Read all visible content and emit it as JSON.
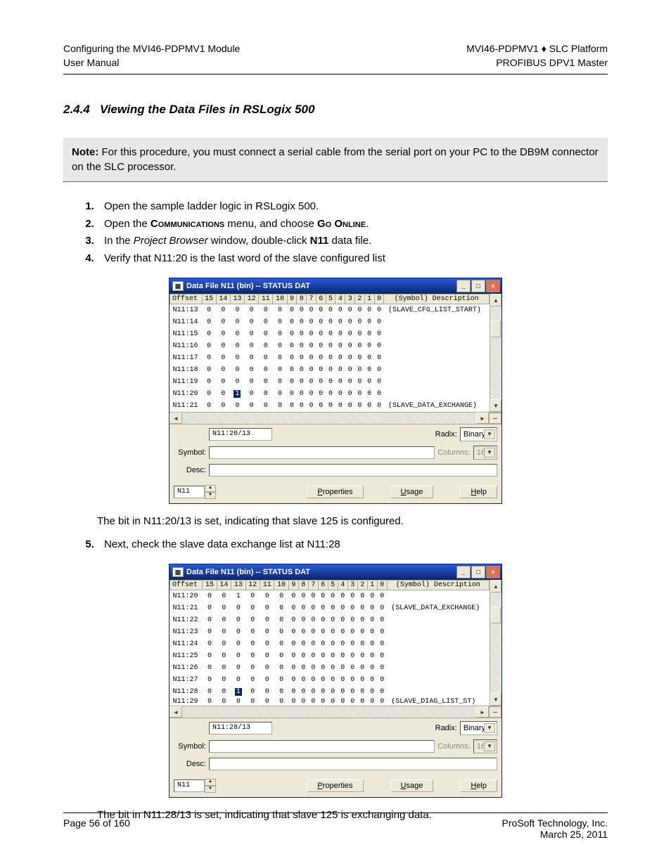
{
  "header": {
    "left_line1": "Configuring the MVI46-PDPMV1 Module",
    "left_line2": "User Manual",
    "right_line1": "MVI46-PDPMV1 ♦ SLC Platform",
    "right_line2": "PROFIBUS DPV1 Master"
  },
  "section": {
    "number": "2.4.4",
    "title": "Viewing the Data Files in RSLogix 500"
  },
  "note": {
    "label": "Note:",
    "text": "For this procedure, you must connect a serial cable from the serial port on your PC to the DB9M connector on the SLC processor."
  },
  "steps_a": {
    "items": [
      "Open the sample ladder logic in RSLogix 500.",
      {
        "pre": "Open the ",
        "smallcaps1": "Communications",
        "mid": " menu, and choose ",
        "smallcaps2": "Go Online",
        "post": "."
      },
      {
        "pre": "In the ",
        "italic": "Project Browser",
        "mid": " window, double-click ",
        "bold": "N11",
        "post": " data file."
      },
      "Verify that N11:20 is the last word of the slave configured list"
    ]
  },
  "body_text_1": "The bit in N11:20/13 is set, indicating that slave 125 is configured.",
  "steps_b": {
    "start": 5,
    "item": "Next, check the slave data exchange list at N11:28"
  },
  "body_text_2": "The bit in N11:28/13 is set, indicating that slave 125 is exchanging data.",
  "window_common": {
    "title": "Data File N11 (bin)  --  STATUS DAT",
    "col_headers": [
      "Offset",
      "15",
      "14",
      "13",
      "12",
      "11",
      "10",
      "9",
      "8",
      "7",
      "6",
      "5",
      "4",
      "3",
      "2",
      "1",
      "0",
      "(Symbol) Description"
    ],
    "titlebar_bg": "#0a246a",
    "panel_bg": "#ece9d8",
    "highlight_bg": "#0a246a",
    "highlight_fg": "#ffffff",
    "symbol_label": "Symbol:",
    "desc_label": "Desc:",
    "radix_label": "Radix:",
    "radix_value": "Binary",
    "columns_label": "Columns:",
    "columns_value": "16",
    "file_input": "N11",
    "btn_properties": "Properties",
    "btn_usage": "Usage",
    "btn_help": "Help"
  },
  "window1": {
    "address_field": "N11:20/13",
    "rows": [
      {
        "offset": "N11:13",
        "bits": [
          0,
          0,
          0,
          0,
          0,
          0,
          0,
          0,
          0,
          0,
          0,
          0,
          0,
          0,
          0,
          0
        ],
        "desc": "(SLAVE_CFG_LIST_START)"
      },
      {
        "offset": "N11:14",
        "bits": [
          0,
          0,
          0,
          0,
          0,
          0,
          0,
          0,
          0,
          0,
          0,
          0,
          0,
          0,
          0,
          0
        ],
        "desc": ""
      },
      {
        "offset": "N11:15",
        "bits": [
          0,
          0,
          0,
          0,
          0,
          0,
          0,
          0,
          0,
          0,
          0,
          0,
          0,
          0,
          0,
          0
        ],
        "desc": ""
      },
      {
        "offset": "N11:16",
        "bits": [
          0,
          0,
          0,
          0,
          0,
          0,
          0,
          0,
          0,
          0,
          0,
          0,
          0,
          0,
          0,
          0
        ],
        "desc": ""
      },
      {
        "offset": "N11:17",
        "bits": [
          0,
          0,
          0,
          0,
          0,
          0,
          0,
          0,
          0,
          0,
          0,
          0,
          0,
          0,
          0,
          0
        ],
        "desc": ""
      },
      {
        "offset": "N11:18",
        "bits": [
          0,
          0,
          0,
          0,
          0,
          0,
          0,
          0,
          0,
          0,
          0,
          0,
          0,
          0,
          0,
          0
        ],
        "desc": ""
      },
      {
        "offset": "N11:19",
        "bits": [
          0,
          0,
          0,
          0,
          0,
          0,
          0,
          0,
          0,
          0,
          0,
          0,
          0,
          0,
          0,
          0
        ],
        "desc": ""
      },
      {
        "offset": "N11:20",
        "bits": [
          0,
          0,
          1,
          0,
          0,
          0,
          0,
          0,
          0,
          0,
          0,
          0,
          0,
          0,
          0,
          0
        ],
        "desc": "",
        "highlight_col": 13
      },
      {
        "offset": "N11:21",
        "bits": [
          0,
          0,
          0,
          0,
          0,
          0,
          0,
          0,
          0,
          0,
          0,
          0,
          0,
          0,
          0,
          0
        ],
        "desc": "(SLAVE_DATA_EXCHANGE)"
      }
    ]
  },
  "window2": {
    "address_field": "N11:28/13",
    "rows": [
      {
        "offset": "N11:20",
        "bits": [
          0,
          0,
          1,
          0,
          0,
          0,
          0,
          0,
          0,
          0,
          0,
          0,
          0,
          0,
          0,
          0
        ],
        "desc": ""
      },
      {
        "offset": "N11:21",
        "bits": [
          0,
          0,
          0,
          0,
          0,
          0,
          0,
          0,
          0,
          0,
          0,
          0,
          0,
          0,
          0,
          0
        ],
        "desc": "(SLAVE_DATA_EXCHANGE)"
      },
      {
        "offset": "N11:22",
        "bits": [
          0,
          0,
          0,
          0,
          0,
          0,
          0,
          0,
          0,
          0,
          0,
          0,
          0,
          0,
          0,
          0
        ],
        "desc": ""
      },
      {
        "offset": "N11:23",
        "bits": [
          0,
          0,
          0,
          0,
          0,
          0,
          0,
          0,
          0,
          0,
          0,
          0,
          0,
          0,
          0,
          0
        ],
        "desc": ""
      },
      {
        "offset": "N11:24",
        "bits": [
          0,
          0,
          0,
          0,
          0,
          0,
          0,
          0,
          0,
          0,
          0,
          0,
          0,
          0,
          0,
          0
        ],
        "desc": ""
      },
      {
        "offset": "N11:25",
        "bits": [
          0,
          0,
          0,
          0,
          0,
          0,
          0,
          0,
          0,
          0,
          0,
          0,
          0,
          0,
          0,
          0
        ],
        "desc": ""
      },
      {
        "offset": "N11:26",
        "bits": [
          0,
          0,
          0,
          0,
          0,
          0,
          0,
          0,
          0,
          0,
          0,
          0,
          0,
          0,
          0,
          0
        ],
        "desc": ""
      },
      {
        "offset": "N11:27",
        "bits": [
          0,
          0,
          0,
          0,
          0,
          0,
          0,
          0,
          0,
          0,
          0,
          0,
          0,
          0,
          0,
          0
        ],
        "desc": ""
      },
      {
        "offset": "N11:28",
        "bits": [
          0,
          0,
          1,
          0,
          0,
          0,
          0,
          0,
          0,
          0,
          0,
          0,
          0,
          0,
          0,
          0
        ],
        "desc": "",
        "highlight_col": 13
      },
      {
        "offset": "N11:29",
        "bits": [
          0,
          0,
          0,
          0,
          0,
          0,
          0,
          0,
          0,
          0,
          0,
          0,
          0,
          0,
          0,
          0
        ],
        "desc": "(SLAVE_DIAG_LIST_ST)",
        "cut": true
      }
    ]
  },
  "footer": {
    "left": "Page 56 of 160",
    "right_line1": "ProSoft Technology, Inc.",
    "right_line2": "March 25, 2011"
  }
}
